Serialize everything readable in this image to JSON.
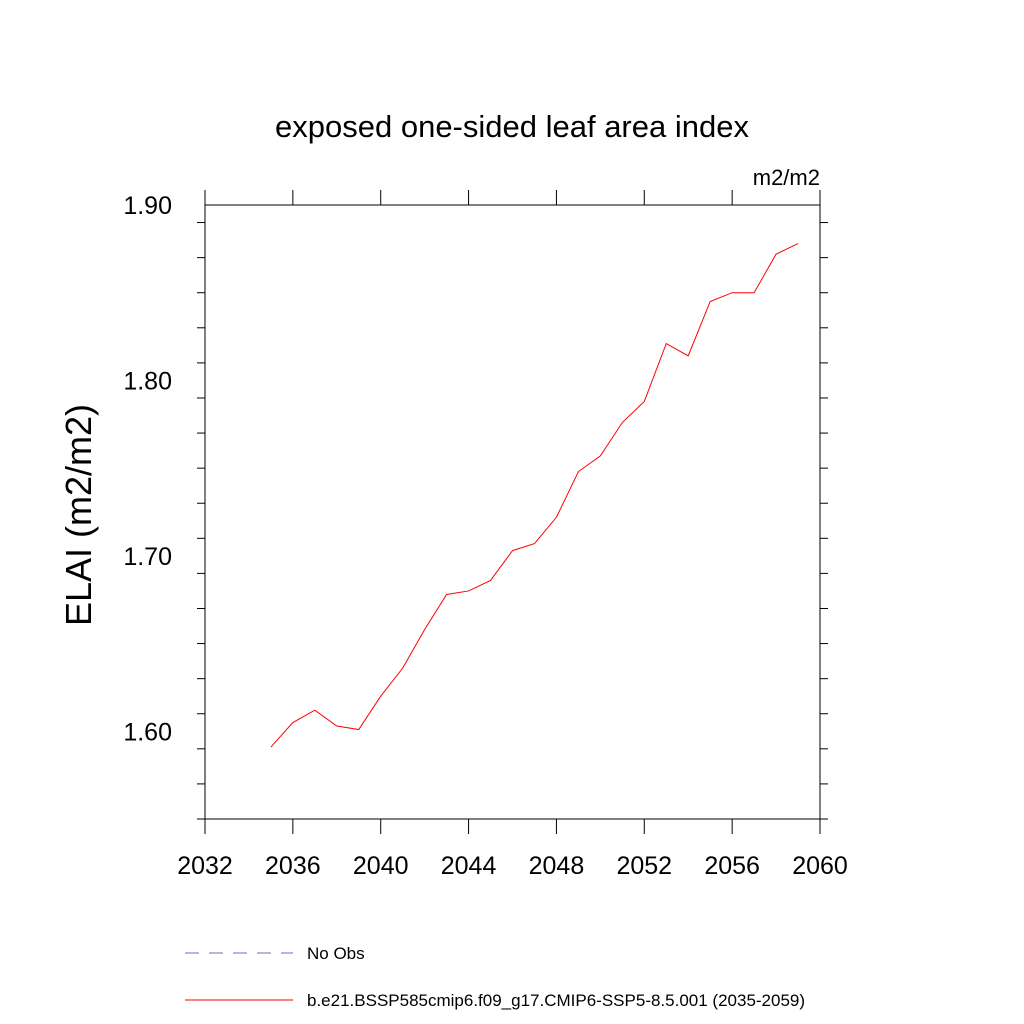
{
  "chart_data": {
    "type": "line",
    "title": "exposed one-sided leaf area index",
    "units": "m2/m2",
    "ylabel": "ELAI  (m2/m2)",
    "xlabel": "",
    "xlim": [
      2032,
      2060
    ],
    "ylim": [
      1.55,
      1.9
    ],
    "x_ticks": [
      2032,
      2036,
      2040,
      2044,
      2048,
      2052,
      2056,
      2060
    ],
    "x_tick_labels": [
      "2032",
      "2036",
      "2040",
      "2044",
      "2048",
      "2052",
      "2056",
      "2060"
    ],
    "y_ticks": [
      1.6,
      1.7,
      1.8,
      1.9
    ],
    "y_tick_labels": [
      "1.60",
      "1.70",
      "1.80",
      "1.90"
    ],
    "grid": false,
    "legend_position": "bottom",
    "series": [
      {
        "name": "b.e21.BSSP585cmip6.f09_g17.CMIP6-SSP5-8.5.001 (2035-2059)",
        "color": "#ff0000",
        "style": "solid",
        "x": [
          2035,
          2036,
          2037,
          2038,
          2039,
          2040,
          2041,
          2042,
          2043,
          2044,
          2045,
          2046,
          2047,
          2048,
          2049,
          2050,
          2051,
          2052,
          2053,
          2054,
          2055,
          2056,
          2057,
          2058,
          2059
        ],
        "y": [
          1.591,
          1.605,
          1.612,
          1.603,
          1.601,
          1.62,
          1.636,
          1.658,
          1.678,
          1.68,
          1.686,
          1.703,
          1.707,
          1.722,
          1.748,
          1.757,
          1.776,
          1.788,
          1.821,
          1.814,
          1.845,
          1.85,
          1.85,
          1.872,
          1.878
        ]
      },
      {
        "name": "No Obs",
        "color": "#6b6bc4",
        "style": "dashed",
        "x": [],
        "y": []
      }
    ]
  }
}
